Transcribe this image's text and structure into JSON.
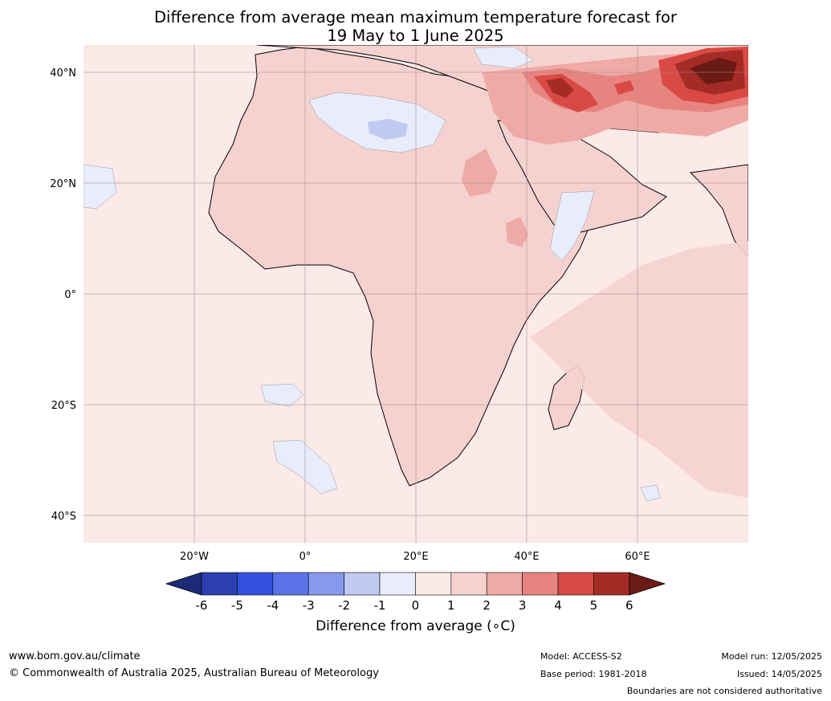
{
  "title": {
    "line1": "Difference from average mean maximum temperature forecast for",
    "line2": "19 May to 1 June 2025"
  },
  "axes": {
    "lat_labels": [
      "40°N",
      "20°N",
      "0°",
      "20°S",
      "40°S"
    ],
    "lon_labels": [
      "20°W",
      "0°",
      "20°E",
      "40°E",
      "60°E"
    ]
  },
  "colorbar": {
    "title": "Difference from average (∘C)",
    "tick_labels": [
      "-6",
      "-5",
      "-4",
      "-3",
      "-2",
      "-1",
      "0",
      "1",
      "2",
      "3",
      "4",
      "5",
      "6"
    ],
    "colors": [
      "#1c2a78",
      "#2b3fb0",
      "#3350e0",
      "#5a73e6",
      "#8799ec",
      "#c0c9f2",
      "#e9ecfb",
      "#fbeae8",
      "#f5d2cf",
      "#efaaa6",
      "#e8847f",
      "#d94a44",
      "#a52c26",
      "#6b1a15"
    ]
  },
  "footer": {
    "website": "www.bom.gov.au/climate",
    "copyright": "© Commonwealth of Australia 2025, Australian Bureau of Meteorology",
    "model": "Model: ACCESS-S2",
    "base_period": "Base period: 1981-2018",
    "model_run": "Model run: 12/05/2025",
    "issued": "Issued: 14/05/2025",
    "disclaimer": "Boundaries are not considered authoritative"
  },
  "colors": {
    "ocean_base": "#fbeae8",
    "land_warm": "#f5d2cf",
    "grid": "#9e8a8a"
  }
}
